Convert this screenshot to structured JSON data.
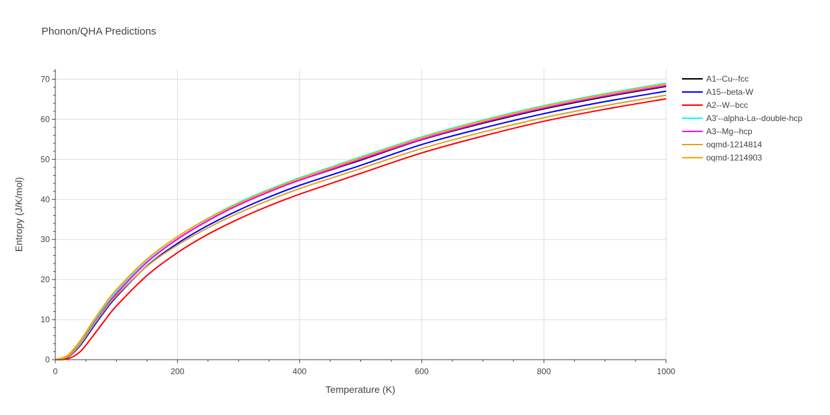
{
  "chart_data": {
    "type": "line",
    "title": "Phonon/QHA Predictions",
    "xlabel": "Temperature (K)",
    "ylabel": "Entropy (J/K/mol)",
    "xlim": [
      0,
      1000
    ],
    "ylim": [
      0,
      72.5
    ],
    "xticks": [
      0,
      200,
      400,
      600,
      800,
      1000
    ],
    "yticks": [
      0,
      10,
      20,
      30,
      40,
      50,
      60,
      70
    ],
    "grid": true,
    "legend_position": "top-right-outside",
    "x": [
      0,
      20,
      40,
      60,
      80,
      100,
      150,
      200,
      250,
      300,
      350,
      400,
      500,
      600,
      700,
      800,
      900,
      1000
    ],
    "series": [
      {
        "name": "A1--Cu--fcc",
        "color": "#000000",
        "values": [
          0,
          0.8,
          3.9,
          8.3,
          12.6,
          16.5,
          24.3,
          30.1,
          34.7,
          38.6,
          41.9,
          44.8,
          49.8,
          54.9,
          59.0,
          62.6,
          65.6,
          68.2
        ]
      },
      {
        "name": "A15--beta-W",
        "color": "#0000ff",
        "values": [
          0,
          0.6,
          3.4,
          7.7,
          11.9,
          15.7,
          23.4,
          29.0,
          33.5,
          37.3,
          40.6,
          43.5,
          48.5,
          53.7,
          57.8,
          61.4,
          64.4,
          67.0
        ]
      },
      {
        "name": "A2--W--bcc",
        "color": "#ff0000",
        "values": [
          0,
          0.2,
          1.9,
          5.6,
          9.6,
          13.4,
          21.0,
          26.7,
          31.3,
          35.1,
          38.4,
          41.3,
          46.5,
          51.6,
          55.8,
          59.5,
          62.5,
          65.1
        ]
      },
      {
        "name": "A3'--alpha-La--double-hcp",
        "color": "#00ffff",
        "values": [
          0,
          0.9,
          4.2,
          8.8,
          13.2,
          17.1,
          24.9,
          30.7,
          35.3,
          39.2,
          42.5,
          45.4,
          50.6,
          55.6,
          59.8,
          63.4,
          66.4,
          69.0
        ]
      },
      {
        "name": "A3--Mg--hcp",
        "color": "#ff00ff",
        "values": [
          0,
          0.8,
          3.8,
          8.3,
          12.6,
          16.5,
          24.3,
          30.1,
          34.7,
          38.6,
          41.9,
          44.8,
          50.0,
          55.0,
          59.2,
          62.8,
          65.8,
          68.4
        ]
      },
      {
        "name": "oqmd-1214814",
        "color": "#daa520",
        "values": [
          0,
          0.7,
          3.7,
          8.1,
          12.3,
          16.0,
          23.3,
          28.6,
          32.9,
          36.6,
          39.8,
          42.7,
          47.7,
          52.7,
          56.8,
          60.4,
          63.4,
          66.0
        ]
      },
      {
        "name": "oqmd-1214903",
        "color": "#ffa500",
        "values": [
          0,
          1.1,
          4.6,
          9.2,
          13.6,
          17.5,
          25.1,
          30.7,
          35.2,
          39.0,
          42.3,
          45.2,
          50.4,
          55.4,
          59.6,
          63.2,
          66.2,
          68.8
        ]
      }
    ]
  }
}
